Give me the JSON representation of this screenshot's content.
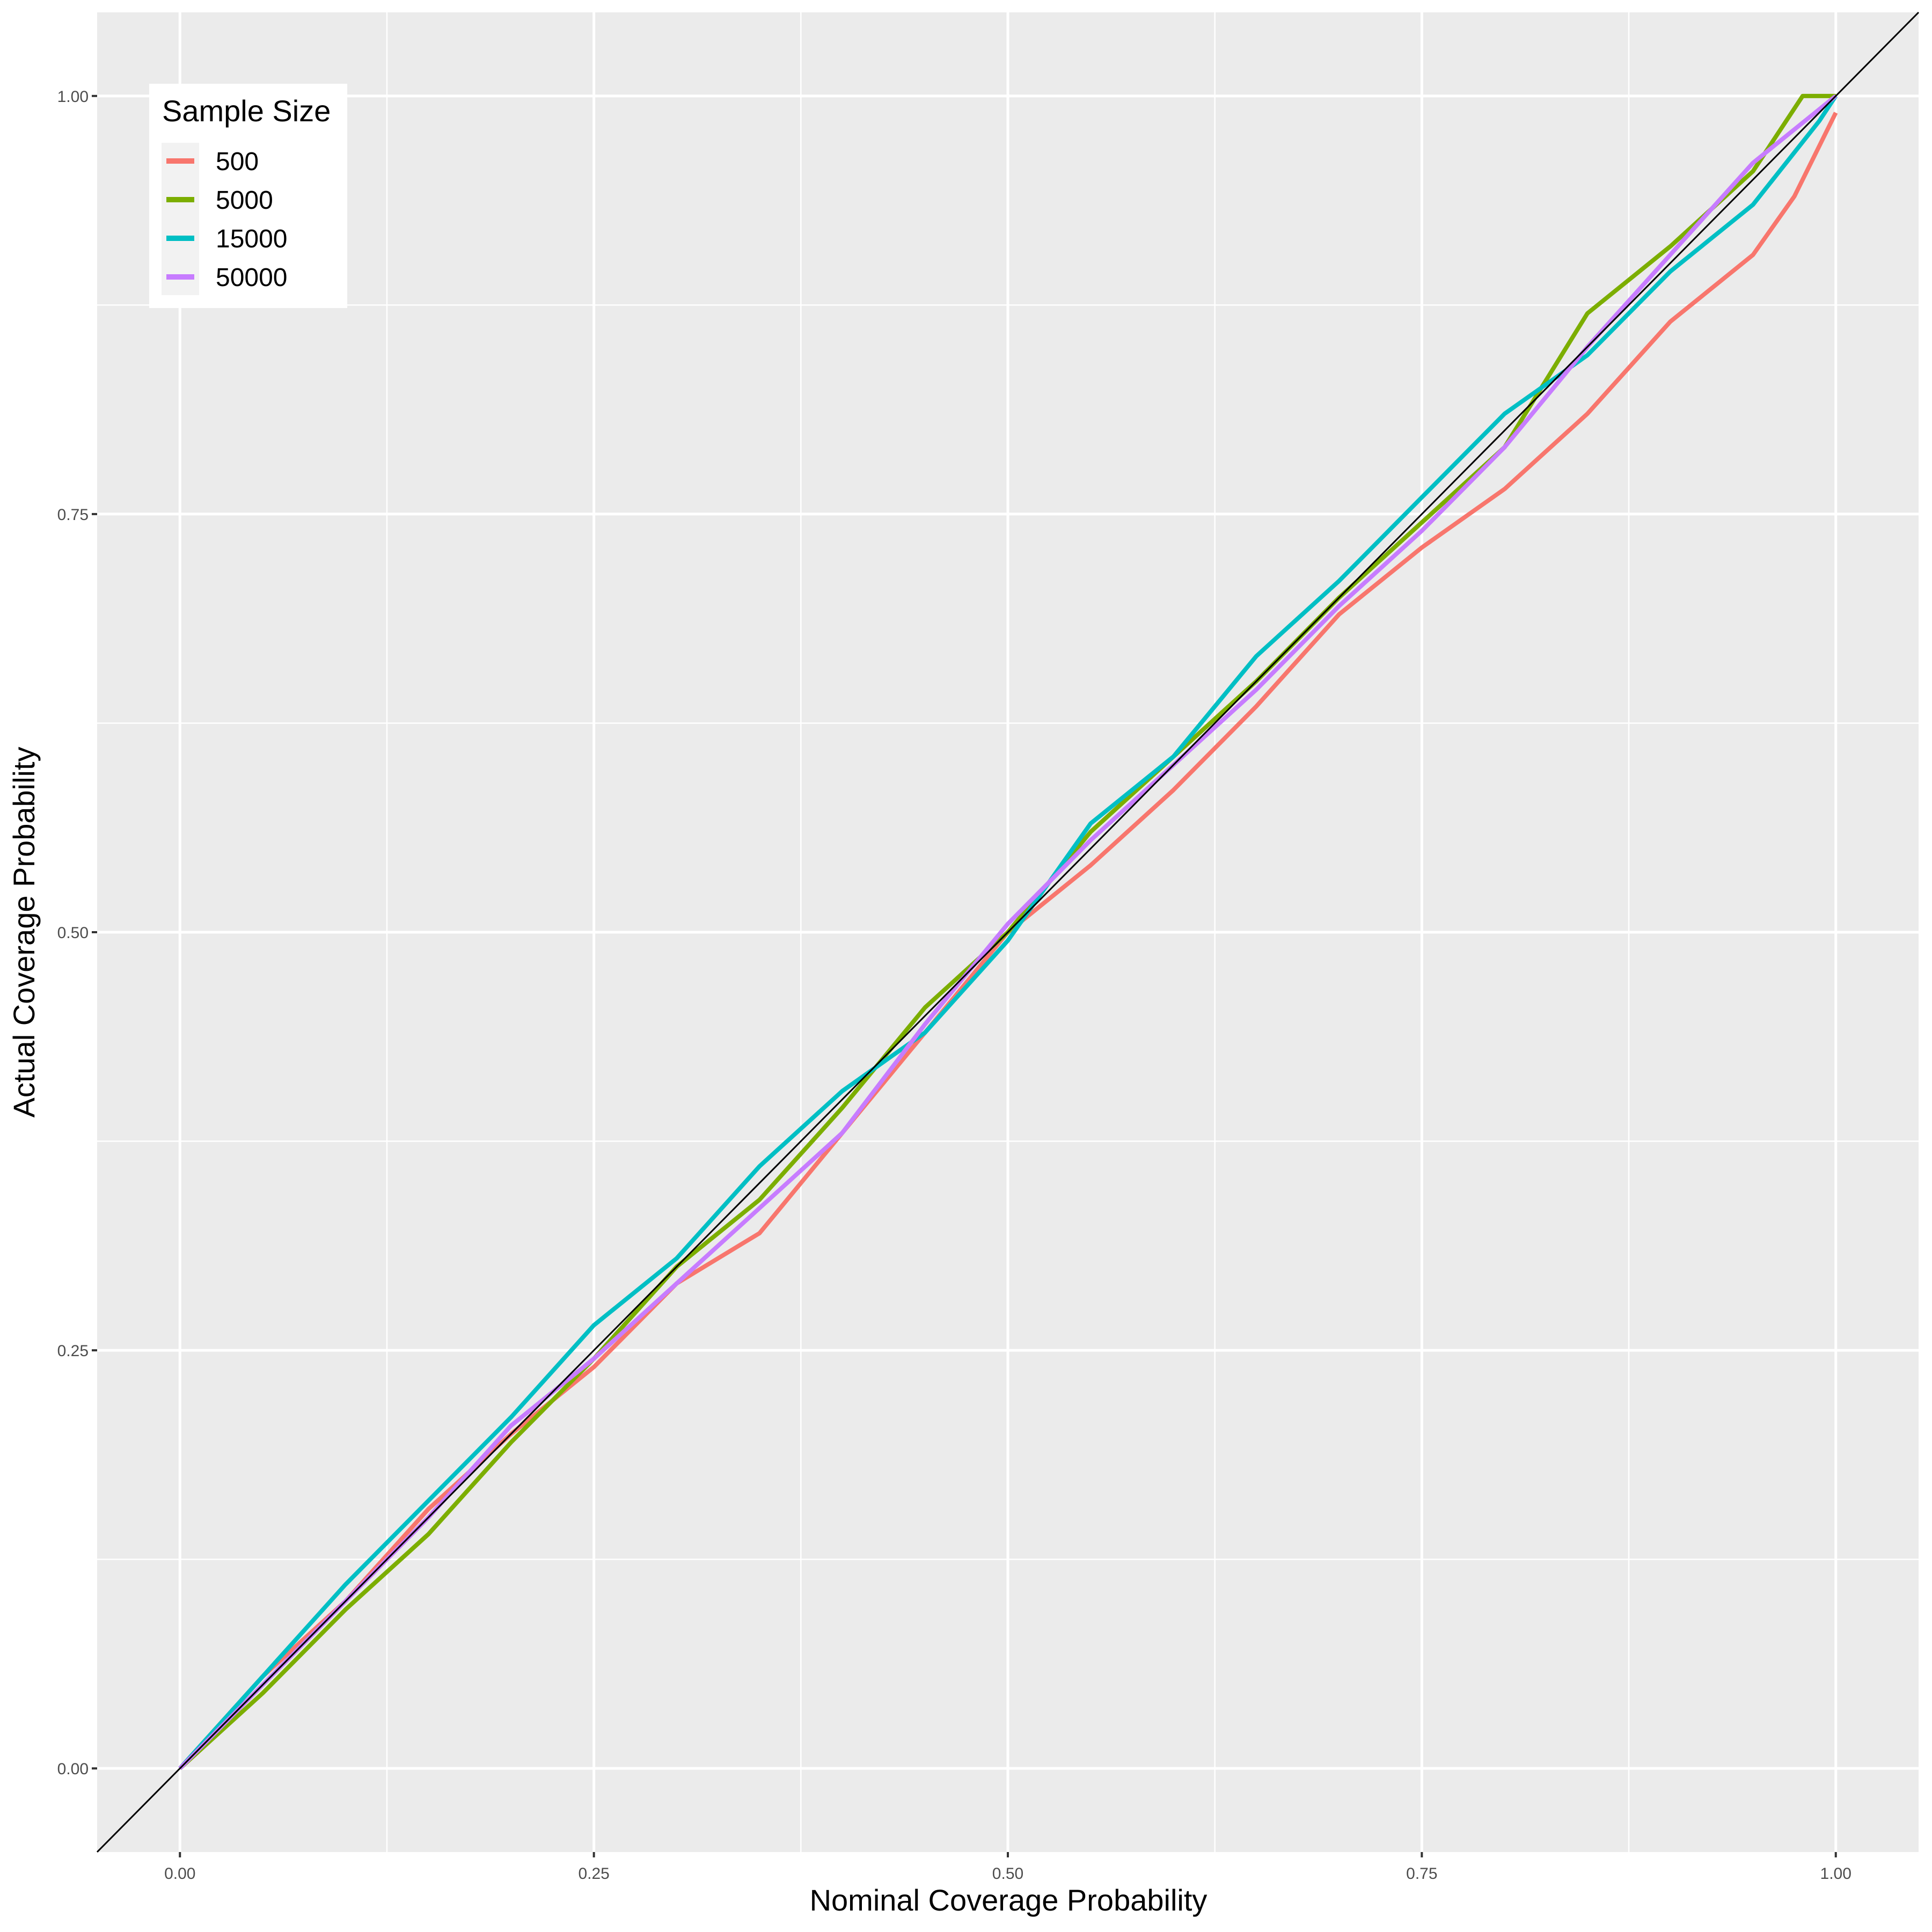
{
  "chart_data": {
    "type": "line",
    "title": "",
    "xlabel": "Nominal Coverage Probability",
    "ylabel": "Actual Coverage Probability",
    "xlim": [
      -0.05,
      1.05
    ],
    "ylim": [
      -0.05,
      1.05
    ],
    "xticks": [
      "0.00",
      "0.25",
      "0.50",
      "0.75",
      "1.00"
    ],
    "yticks": [
      "0.00",
      "0.25",
      "0.50",
      "0.75",
      "1.00"
    ],
    "grid": true,
    "reference_line": "y = x",
    "legend": {
      "title": "Sample Size",
      "placement": "top-left"
    },
    "series": [
      {
        "name": "500",
        "color": "#F8766D",
        "x": [
          0,
          0.05,
          0.1,
          0.15,
          0.2,
          0.25,
          0.3,
          0.35,
          0.4,
          0.45,
          0.5,
          0.55,
          0.6,
          0.65,
          0.7,
          0.75,
          0.8,
          0.85,
          0.9,
          0.95,
          0.975,
          1
        ],
        "y": [
          0,
          0.055,
          0.1,
          0.155,
          0.2,
          0.24,
          0.29,
          0.32,
          0.38,
          0.44,
          0.5,
          0.54,
          0.585,
          0.635,
          0.69,
          0.73,
          0.765,
          0.81,
          0.865,
          0.905,
          0.94,
          0.99
        ]
      },
      {
        "name": "5000",
        "color": "#7CAE00",
        "x": [
          0,
          0.05,
          0.1,
          0.15,
          0.2,
          0.25,
          0.3,
          0.35,
          0.4,
          0.45,
          0.5,
          0.55,
          0.6,
          0.65,
          0.7,
          0.75,
          0.8,
          0.85,
          0.9,
          0.95,
          0.98,
          1
        ],
        "y": [
          0,
          0.045,
          0.095,
          0.14,
          0.195,
          0.245,
          0.3,
          0.34,
          0.395,
          0.455,
          0.5,
          0.56,
          0.605,
          0.65,
          0.7,
          0.745,
          0.79,
          0.87,
          0.91,
          0.955,
          1,
          1
        ]
      },
      {
        "name": "15000",
        "color": "#00BFC4",
        "x": [
          0,
          0.05,
          0.1,
          0.15,
          0.2,
          0.25,
          0.3,
          0.35,
          0.4,
          0.45,
          0.5,
          0.55,
          0.6,
          0.65,
          0.7,
          0.75,
          0.8,
          0.85,
          0.9,
          0.95,
          0.99,
          1
        ],
        "y": [
          0,
          0.055,
          0.11,
          0.16,
          0.21,
          0.265,
          0.305,
          0.36,
          0.405,
          0.44,
          0.495,
          0.565,
          0.605,
          0.665,
          0.71,
          0.76,
          0.81,
          0.845,
          0.895,
          0.935,
          0.985,
          1
        ]
      },
      {
        "name": "50000",
        "color": "#C77CFF",
        "x": [
          0,
          0.05,
          0.1,
          0.15,
          0.2,
          0.25,
          0.3,
          0.35,
          0.4,
          0.45,
          0.5,
          0.55,
          0.6,
          0.65,
          0.7,
          0.75,
          0.8,
          0.85,
          0.9,
          0.95,
          1
        ],
        "y": [
          0,
          0.05,
          0.1,
          0.15,
          0.205,
          0.245,
          0.29,
          0.335,
          0.38,
          0.445,
          0.505,
          0.555,
          0.6,
          0.645,
          0.695,
          0.74,
          0.79,
          0.85,
          0.905,
          0.96,
          1
        ]
      }
    ]
  }
}
